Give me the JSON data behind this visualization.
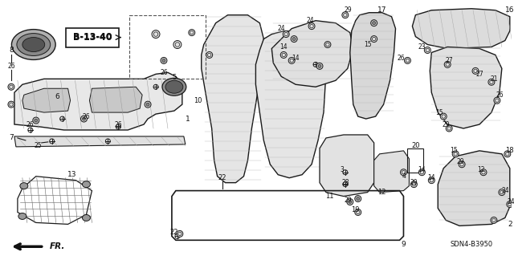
{
  "bg_color": "#ffffff",
  "line_color": "#1a1a1a",
  "text_color": "#111111",
  "diagram_code": "SDN4-B3950",
  "ref_label": "B-13-40",
  "figsize": [
    6.4,
    3.19
  ],
  "dpi": 100
}
